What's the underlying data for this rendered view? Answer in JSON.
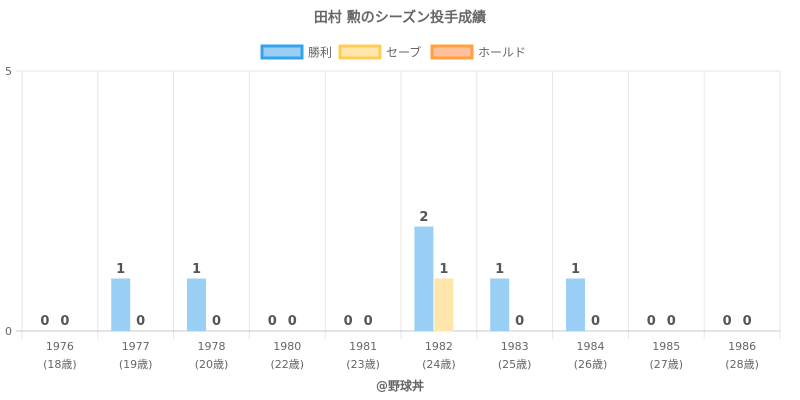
{
  "chart_data": {
    "type": "bar",
    "title": "田村 勲のシーズン投手成績",
    "categories": [
      "1976",
      "1977",
      "1978",
      "1980",
      "1981",
      "1982",
      "1983",
      "1984",
      "1985",
      "1986"
    ],
    "category_sublabels": [
      "(18歳)",
      "(19歳)",
      "(20歳)",
      "(22歳)",
      "(23歳)",
      "(24歳)",
      "(25歳)",
      "(26歳)",
      "(27歳)",
      "(28歳)"
    ],
    "series": [
      {
        "name": "勝利",
        "values": [
          0,
          1,
          1,
          0,
          0,
          2,
          1,
          1,
          0,
          0
        ],
        "color": "#9ad0f5",
        "border": "#36a2eb",
        "show_labels": true
      },
      {
        "name": "セーブ",
        "values": [
          0,
          0,
          0,
          0,
          0,
          1,
          0,
          0,
          0,
          0
        ],
        "color": "#ffe6aa",
        "border": "#ffcd56",
        "show_labels": true
      },
      {
        "name": "ホールド",
        "values": [
          0,
          0,
          0,
          0,
          0,
          0,
          0,
          0,
          0,
          0
        ],
        "color": "#ffc199",
        "border": "#ff9f40",
        "show_labels": false
      }
    ],
    "ylim": [
      0,
      5
    ],
    "yticks": [
      0,
      5
    ],
    "legend": "top",
    "grid": true,
    "credit": "@野球丼"
  }
}
